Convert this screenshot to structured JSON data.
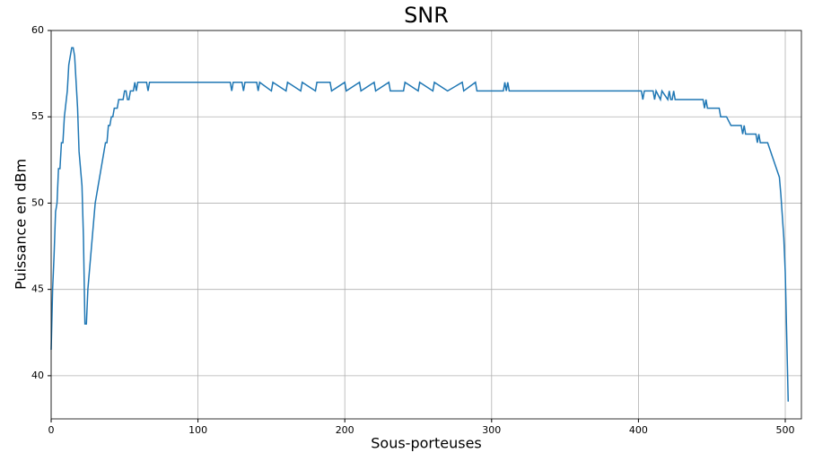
{
  "chart_data": {
    "type": "line",
    "title": "SNR",
    "x_label": "Sous-porteuses",
    "y_label": "Puissance en dBm",
    "x": [
      0,
      1,
      2,
      3,
      4,
      5,
      6,
      7,
      8,
      9,
      11,
      12,
      14,
      15,
      16,
      17,
      18,
      19,
      20,
      21,
      22,
      23,
      24,
      25,
      27,
      29,
      30,
      32,
      34,
      36,
      37,
      38,
      39,
      40,
      41,
      42,
      43,
      45,
      46,
      49,
      50,
      51,
      52,
      53,
      54,
      56,
      57,
      58,
      59,
      65,
      66,
      67,
      122,
      123,
      124,
      125,
      130,
      131,
      132,
      140,
      141,
      142,
      150,
      151,
      160,
      161,
      170,
      171,
      180,
      181,
      190,
      191,
      200,
      201,
      210,
      211,
      220,
      221,
      230,
      231,
      240,
      241,
      250,
      251,
      260,
      261,
      270,
      280,
      281,
      289,
      290,
      308,
      309,
      310,
      311,
      312,
      402,
      403,
      404,
      410,
      411,
      412,
      415,
      416,
      420,
      421,
      422,
      423,
      424,
      425,
      444,
      445,
      446,
      447,
      455,
      456,
      460,
      463,
      470,
      471,
      472,
      473,
      480,
      481,
      482,
      483,
      488,
      490,
      494,
      496,
      497,
      499,
      500,
      502
    ],
    "values": [
      41.5,
      45,
      47,
      49.5,
      50,
      52,
      52,
      53.5,
      53.5,
      55,
      56.5,
      58,
      59,
      59,
      58.5,
      57,
      55.5,
      53,
      52,
      51,
      48,
      43,
      43,
      45,
      47,
      49,
      50,
      51,
      52,
      53,
      53.5,
      53.5,
      54.5,
      54.5,
      55,
      55,
      55.5,
      55.5,
      56,
      56,
      56.5,
      56.5,
      56,
      56,
      56.5,
      56.5,
      57,
      56.5,
      57,
      57,
      56.5,
      57,
      57,
      56.5,
      57,
      57,
      57,
      56.5,
      57,
      57,
      56.5,
      57,
      56.5,
      57,
      56.5,
      57,
      56.5,
      57,
      56.5,
      57,
      57,
      56.5,
      57,
      56.5,
      57,
      56.5,
      57,
      56.5,
      57,
      56.5,
      56.5,
      57,
      56.5,
      57,
      56.5,
      57,
      56.5,
      57,
      56.5,
      57,
      56.5,
      56.5,
      57,
      56.5,
      57,
      56.5,
      56.5,
      56,
      56.5,
      56.5,
      56,
      56.5,
      56,
      56.5,
      56,
      56.5,
      56,
      56,
      56.5,
      56,
      56,
      55.5,
      56,
      55.5,
      55.5,
      55,
      55,
      54.5,
      54.5,
      54,
      54.5,
      54,
      54,
      53.5,
      54,
      53.5,
      53.5,
      53,
      52,
      51.5,
      50.5,
      48,
      46,
      38.5
    ],
    "color": "#1f77b4",
    "xlim": [
      0,
      511
    ],
    "ylim": [
      37.5,
      60
    ],
    "xticks": [
      0,
      100,
      200,
      300,
      400,
      500
    ],
    "yticks": [
      40,
      45,
      50,
      55,
      60
    ],
    "grid": true
  }
}
